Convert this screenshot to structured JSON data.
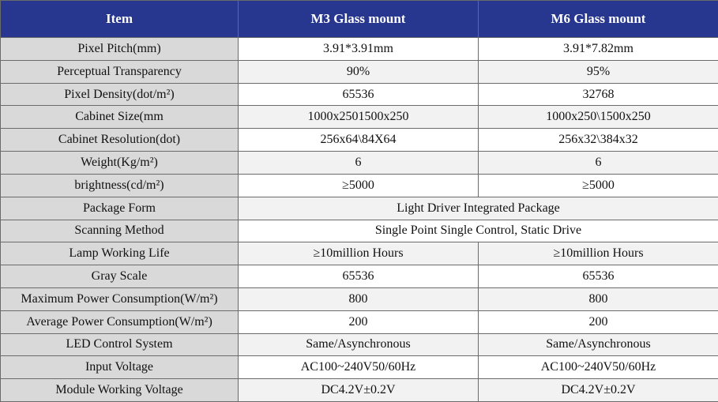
{
  "table": {
    "header": [
      "Item",
      "M3 Glass mount",
      "M6 Glass mount"
    ],
    "rows": [
      [
        "Pixel Pitch(mm)",
        "3.91*3.91mm",
        "3.91*7.82mm"
      ],
      [
        "Perceptual Transparency",
        "90%",
        "95%"
      ],
      [
        "Pixel Density(dot/m²)",
        "65536",
        "32768"
      ],
      [
        "Cabinet Size(mm",
        "1000x2501500x250",
        "1000x250\\1500x250"
      ],
      [
        "Cabinet Resolution(dot)",
        "256x64\\84X64",
        "256x32\\384x32"
      ],
      [
        "Weight(Kg/m²)",
        "6",
        "6"
      ],
      [
        "brightness(cd/m²)",
        "≥5000",
        "≥5000"
      ],
      [
        "Package Form",
        "Light Driver Integrated Package"
      ],
      [
        "Scanning Method",
        "Single Point Single Control, Static Drive"
      ],
      [
        "Lamp Working Life",
        "≥10million Hours",
        "≥10million Hours"
      ],
      [
        "Gray Scale",
        "65536",
        "65536"
      ],
      [
        "Maximum Power Consumption(W/m²)",
        "800",
        "800"
      ],
      [
        "Average Power Consumption(W/m²)",
        "200",
        "200"
      ],
      [
        "LED Control System",
        "Same/Asynchronous",
        "Same/Asynchronous"
      ],
      [
        "Input Voltage",
        "AC100~240V50/60Hz",
        "AC100~240V50/60Hz"
      ],
      [
        "Module Working Voltage",
        "DC4.2V±0.2V",
        "DC4.2V±0.2V"
      ]
    ]
  }
}
